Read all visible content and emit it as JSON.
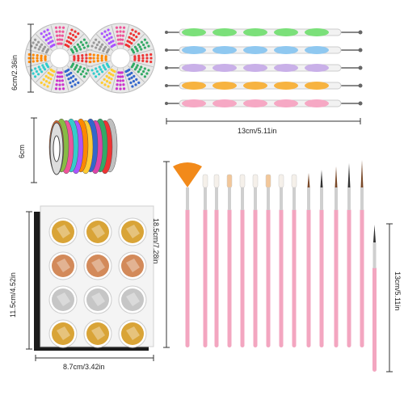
{
  "measurements": {
    "wheels_height": "6cm/2.36in",
    "dotting_width": "13cm/5.11in",
    "tape_height": "6cm",
    "brushes_height": "18.5cm/7.28in",
    "foil_height": "11.5cm/4.52in",
    "foil_width": "8.7cm/3.42in",
    "liner_height": "13cm/5.11in"
  },
  "colors": {
    "dotting_handles": [
      "#7be07a",
      "#8fc8f0",
      "#c9b0e8",
      "#f7b340",
      "#f6a8c4"
    ],
    "brush_handle": "#f3a6c0",
    "fan_brush": "#f28a1a",
    "foil_gold": "#d9a437",
    "foil_copper": "#d38a5a",
    "foil_silver": "#c6c6c6"
  },
  "foil_grid": [
    [
      "gold",
      "gold",
      "gold"
    ],
    [
      "copper",
      "copper",
      "copper"
    ],
    [
      "silver",
      "silver",
      "silver"
    ],
    [
      "gold",
      "gold",
      "gold"
    ]
  ]
}
